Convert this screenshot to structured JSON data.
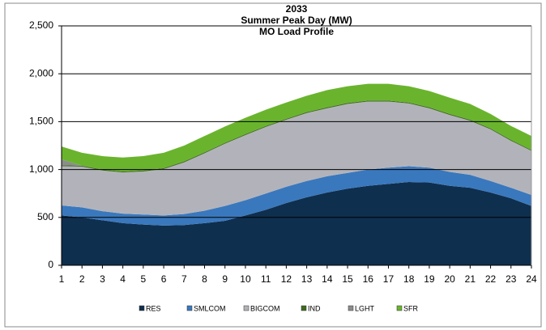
{
  "chart_data": {
    "type": "stacked_area",
    "title": "2033",
    "subtitle": [
      "Summer Peak Day (MW)",
      "MO  Load Profile"
    ],
    "x": [
      1,
      2,
      3,
      4,
      5,
      6,
      7,
      8,
      9,
      10,
      11,
      12,
      13,
      14,
      15,
      16,
      17,
      18,
      19,
      20,
      21,
      22,
      23,
      24
    ],
    "xlim": [
      1,
      24
    ],
    "xticks": [
      1,
      2,
      3,
      4,
      5,
      6,
      7,
      8,
      9,
      10,
      11,
      12,
      13,
      14,
      15,
      16,
      17,
      18,
      19,
      20,
      21,
      22,
      23,
      24
    ],
    "ylim": [
      0,
      2500
    ],
    "yticks": [
      0,
      {
        "value": 500,
        "label": "500"
      },
      {
        "value": 1000,
        "label": "1,000"
      },
      {
        "value": 1500,
        "label": "1,500"
      },
      {
        "value": 2000,
        "label": "2,000"
      },
      {
        "value": 2500,
        "label": "2,500"
      }
    ],
    "grid": true,
    "legend": "bottom",
    "series": [
      {
        "name": "RES",
        "color": "#0f2f4e",
        "values": [
          520,
          500,
          470,
          440,
          425,
          415,
          420,
          440,
          465,
          520,
          580,
          650,
          710,
          760,
          800,
          830,
          850,
          870,
          865,
          830,
          810,
          760,
          700,
          620
        ]
      },
      {
        "name": "SMLCOM",
        "color": "#3a78bd",
        "values": [
          105,
          105,
          95,
          100,
          105,
          105,
          115,
          130,
          155,
          160,
          170,
          170,
          170,
          170,
          165,
          170,
          170,
          165,
          155,
          145,
          135,
          120,
          110,
          115
        ]
      },
      {
        "name": "BIGCOM",
        "color": "#b2b3ba",
        "values": [
          410,
          425,
          425,
          430,
          450,
          485,
          540,
          600,
          650,
          680,
          695,
          700,
          710,
          710,
          720,
          710,
          690,
          655,
          620,
          595,
          565,
          540,
          490,
          460
        ]
      },
      {
        "name": "IND",
        "color": "#3f6b1f",
        "values": [
          10,
          10,
          10,
          10,
          10,
          10,
          10,
          10,
          10,
          10,
          10,
          10,
          10,
          10,
          10,
          10,
          10,
          10,
          10,
          10,
          10,
          10,
          10,
          10
        ]
      },
      {
        "name": "LGHT",
        "color": "#8c8c8c",
        "values": [
          60,
          0,
          0,
          0,
          0,
          0,
          0,
          0,
          0,
          0,
          0,
          0,
          0,
          0,
          0,
          0,
          0,
          0,
          0,
          0,
          0,
          0,
          0,
          0
        ]
      },
      {
        "name": "SFR",
        "color": "#6ab42d",
        "values": [
          135,
          135,
          140,
          145,
          150,
          160,
          165,
          170,
          170,
          170,
          170,
          170,
          170,
          180,
          175,
          175,
          175,
          170,
          170,
          170,
          165,
          150,
          145,
          145
        ]
      }
    ]
  }
}
